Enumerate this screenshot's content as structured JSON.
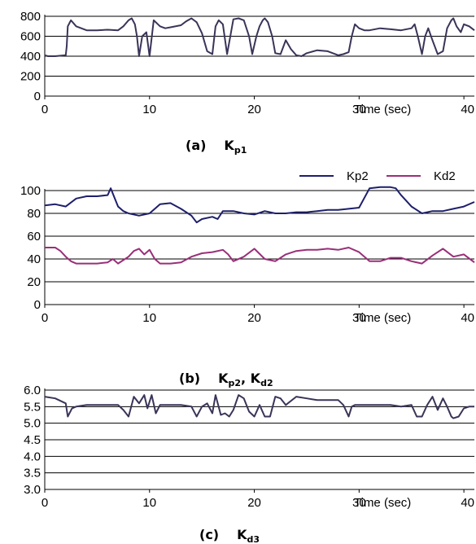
{
  "chart_data": [
    {
      "type": "line",
      "caption": {
        "tag": "(a)",
        "symbol": "K",
        "sub": "p1"
      },
      "xlabel": "Time (sec)",
      "xticks": [
        0,
        10,
        20,
        30,
        40
      ],
      "xlim": [
        0,
        41
      ],
      "ylim": [
        0,
        800
      ],
      "yticks": [
        0,
        200,
        400,
        600,
        800
      ],
      "grid": true,
      "series": [
        {
          "color": "#3a3458",
          "x": [
            0,
            0.3,
            1,
            2,
            2.1,
            2.2,
            2.5,
            3,
            4,
            5,
            6,
            7,
            7.5,
            8,
            8.3,
            8.6,
            8.8,
            9,
            9.3,
            9.7,
            10,
            10.4,
            10.8,
            11,
            11.5,
            12,
            13,
            13.5,
            14,
            14.5,
            15,
            15.5,
            16,
            16.3,
            16.6,
            17,
            17.4,
            18,
            18.5,
            19,
            19.5,
            19.8,
            20.2,
            20.5,
            20.8,
            21,
            21.3,
            21.7,
            22,
            22.5,
            23,
            23.5,
            24,
            24.5,
            25,
            26,
            27,
            28,
            28.5,
            29,
            29.3,
            29.6,
            30,
            30.5,
            31,
            32,
            33,
            34,
            35,
            35.3,
            35.6,
            36,
            36.3,
            36.6,
            37,
            37.5,
            38,
            38.4,
            38.8,
            39,
            39.3,
            39.7,
            40,
            40.5,
            41
          ],
          "y": [
            410,
            400,
            400,
            410,
            500,
            700,
            760,
            700,
            660,
            660,
            665,
            660,
            700,
            760,
            780,
            720,
            600,
            400,
            600,
            640,
            400,
            760,
            720,
            700,
            680,
            690,
            710,
            750,
            780,
            740,
            630,
            450,
            420,
            700,
            760,
            720,
            420,
            770,
            780,
            760,
            600,
            420,
            600,
            700,
            760,
            780,
            740,
            600,
            430,
            420,
            560,
            470,
            410,
            400,
            430,
            460,
            450,
            410,
            420,
            440,
            600,
            720,
            680,
            660,
            660,
            680,
            670,
            660,
            680,
            720,
            600,
            420,
            600,
            680,
            560,
            420,
            450,
            680,
            760,
            780,
            700,
            640,
            720,
            700,
            660
          ]
        }
      ]
    },
    {
      "type": "line",
      "caption": {
        "tag": "(b)",
        "symbol": "K",
        "sub": "p2",
        "symbol2": "K",
        "sub2": "d2"
      },
      "xlabel": "Time (sec)",
      "xticks": [
        0,
        10,
        20,
        30,
        40
      ],
      "xlim": [
        0,
        41
      ],
      "ylim": [
        0,
        100
      ],
      "yticks": [
        0,
        20,
        40,
        60,
        80,
        100
      ],
      "grid": true,
      "legend": "top-right",
      "series": [
        {
          "name": "Kp2",
          "color": "#1e1f6b",
          "x": [
            0,
            1,
            2,
            3,
            4,
            5,
            6,
            6.3,
            6.6,
            7,
            7.5,
            8,
            9,
            10,
            11,
            12,
            13,
            14,
            14.5,
            15,
            16,
            16.5,
            17,
            18,
            19,
            20,
            21,
            22,
            23,
            24,
            25,
            26,
            27,
            28,
            29,
            30,
            31,
            32,
            33,
            33.5,
            34,
            35,
            36,
            37,
            38,
            39,
            40,
            41
          ],
          "y": [
            87,
            88,
            86,
            93,
            95,
            95,
            96,
            102,
            95,
            86,
            82,
            80,
            78,
            80,
            88,
            89,
            84,
            78,
            72,
            75,
            77,
            75,
            82,
            82,
            80,
            79,
            82,
            80,
            80,
            81,
            81,
            82,
            83,
            83,
            84,
            85,
            102,
            103,
            103,
            102,
            96,
            86,
            80,
            82,
            82,
            84,
            86,
            90
          ]
        },
        {
          "name": "Kd2",
          "color": "#9a2f78",
          "x": [
            0,
            1,
            1.5,
            2,
            2.5,
            3,
            4,
            5,
            6,
            6.5,
            7,
            8,
            8.5,
            9,
            9.5,
            10,
            10.5,
            11,
            12,
            13,
            14,
            15,
            16,
            17,
            17.5,
            18,
            19,
            20,
            21,
            22,
            23,
            24,
            25,
            26,
            27,
            28,
            29,
            30,
            31,
            32,
            33,
            34,
            35,
            36,
            37,
            38,
            39,
            40,
            41
          ],
          "y": [
            50,
            50,
            47,
            42,
            38,
            36,
            36,
            36,
            37,
            40,
            36,
            42,
            47,
            49,
            44,
            48,
            40,
            36,
            36,
            37,
            42,
            45,
            46,
            48,
            44,
            38,
            42,
            49,
            40,
            38,
            44,
            47,
            48,
            48,
            49,
            48,
            50,
            46,
            38,
            38,
            41,
            41,
            38,
            36,
            43,
            49,
            42,
            44,
            37
          ]
        }
      ]
    },
    {
      "type": "line",
      "caption": {
        "tag": "(c)",
        "symbol": "K",
        "sub": "d3"
      },
      "xlabel": "Time (sec)",
      "xticks": [
        0,
        10,
        20,
        30,
        40
      ],
      "xlim": [
        0,
        41
      ],
      "ylim": [
        3.0,
        6.0
      ],
      "yticks": [
        "3.0",
        "3.5",
        "4.0",
        "4.5",
        "5.0",
        "5.5",
        "6.0"
      ],
      "grid": true,
      "series": [
        {
          "color": "#3a3458",
          "x": [
            0,
            1,
            2,
            2.2,
            2.6,
            3,
            4,
            5,
            6,
            7,
            7.5,
            8,
            8.5,
            9,
            9.5,
            9.8,
            10.2,
            10.6,
            11,
            12,
            13,
            14,
            14.5,
            15,
            15.5,
            16,
            16.3,
            16.8,
            17.2,
            17.6,
            18,
            18.5,
            19,
            19.5,
            20,
            20.5,
            21,
            21.5,
            22,
            22.5,
            23,
            24,
            25,
            26,
            27,
            28,
            28.5,
            29,
            29.3,
            29.6,
            30,
            31,
            32,
            33,
            34,
            35,
            35.5,
            36,
            36.5,
            37,
            37.5,
            38,
            38.4,
            38.8,
            39,
            39.5,
            40,
            40.5,
            41
          ],
          "y": [
            5.8,
            5.75,
            5.6,
            5.2,
            5.45,
            5.5,
            5.55,
            5.55,
            5.55,
            5.55,
            5.4,
            5.2,
            5.8,
            5.6,
            5.85,
            5.45,
            5.85,
            5.3,
            5.55,
            5.55,
            5.55,
            5.5,
            5.2,
            5.5,
            5.6,
            5.3,
            5.85,
            5.25,
            5.3,
            5.2,
            5.4,
            5.85,
            5.75,
            5.35,
            5.2,
            5.55,
            5.2,
            5.2,
            5.8,
            5.75,
            5.55,
            5.8,
            5.75,
            5.7,
            5.7,
            5.7,
            5.55,
            5.2,
            5.5,
            5.55,
            5.55,
            5.55,
            5.55,
            5.55,
            5.5,
            5.55,
            5.2,
            5.2,
            5.55,
            5.8,
            5.4,
            5.75,
            5.5,
            5.2,
            5.15,
            5.2,
            5.45,
            5.5,
            5.5
          ]
        }
      ]
    }
  ]
}
